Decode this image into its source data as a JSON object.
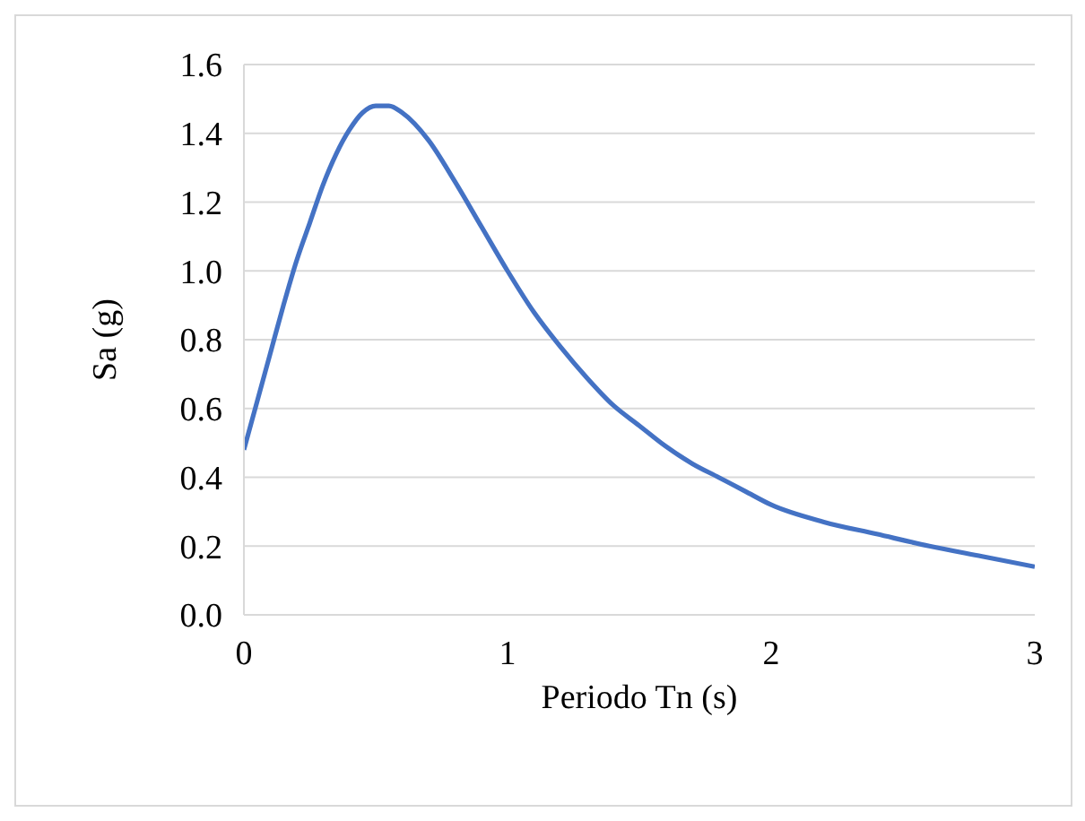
{
  "chart_data": {
    "type": "line",
    "xlabel": "Periodo Tn (s)",
    "ylabel": "Sa (g)",
    "x": [
      0,
      0.05,
      0.1,
      0.15,
      0.2,
      0.25,
      0.3,
      0.35,
      0.4,
      0.45,
      0.5,
      0.55,
      0.6,
      0.7,
      0.8,
      0.9,
      1.0,
      1.1,
      1.2,
      1.3,
      1.4,
      1.5,
      1.6,
      1.7,
      1.8,
      1.9,
      2.0,
      2.2,
      2.4,
      2.6,
      2.8,
      3.0
    ],
    "series": [
      {
        "color": "#4472c4",
        "values": [
          0.48,
          0.62,
          0.76,
          0.9,
          1.03,
          1.14,
          1.25,
          1.34,
          1.41,
          1.46,
          1.48,
          1.48,
          1.46,
          1.38,
          1.26,
          1.13,
          1.0,
          0.88,
          0.78,
          0.69,
          0.61,
          0.55,
          0.49,
          0.44,
          0.4,
          0.36,
          0.32,
          0.27,
          0.235,
          0.2,
          0.17,
          0.14
        ]
      }
    ],
    "xlim": [
      0,
      3
    ],
    "xticks": [
      0,
      1,
      2,
      3
    ],
    "ylim": [
      0,
      1.6
    ],
    "yticks": [
      {
        "value": 0,
        "label": "0.0"
      },
      0.2,
      0.4,
      0.6,
      0.8,
      {
        "value": 1,
        "label": "1.0"
      },
      1.2,
      1.4,
      1.6
    ],
    "grid": "y",
    "marker": "none",
    "line_style": "solid"
  }
}
